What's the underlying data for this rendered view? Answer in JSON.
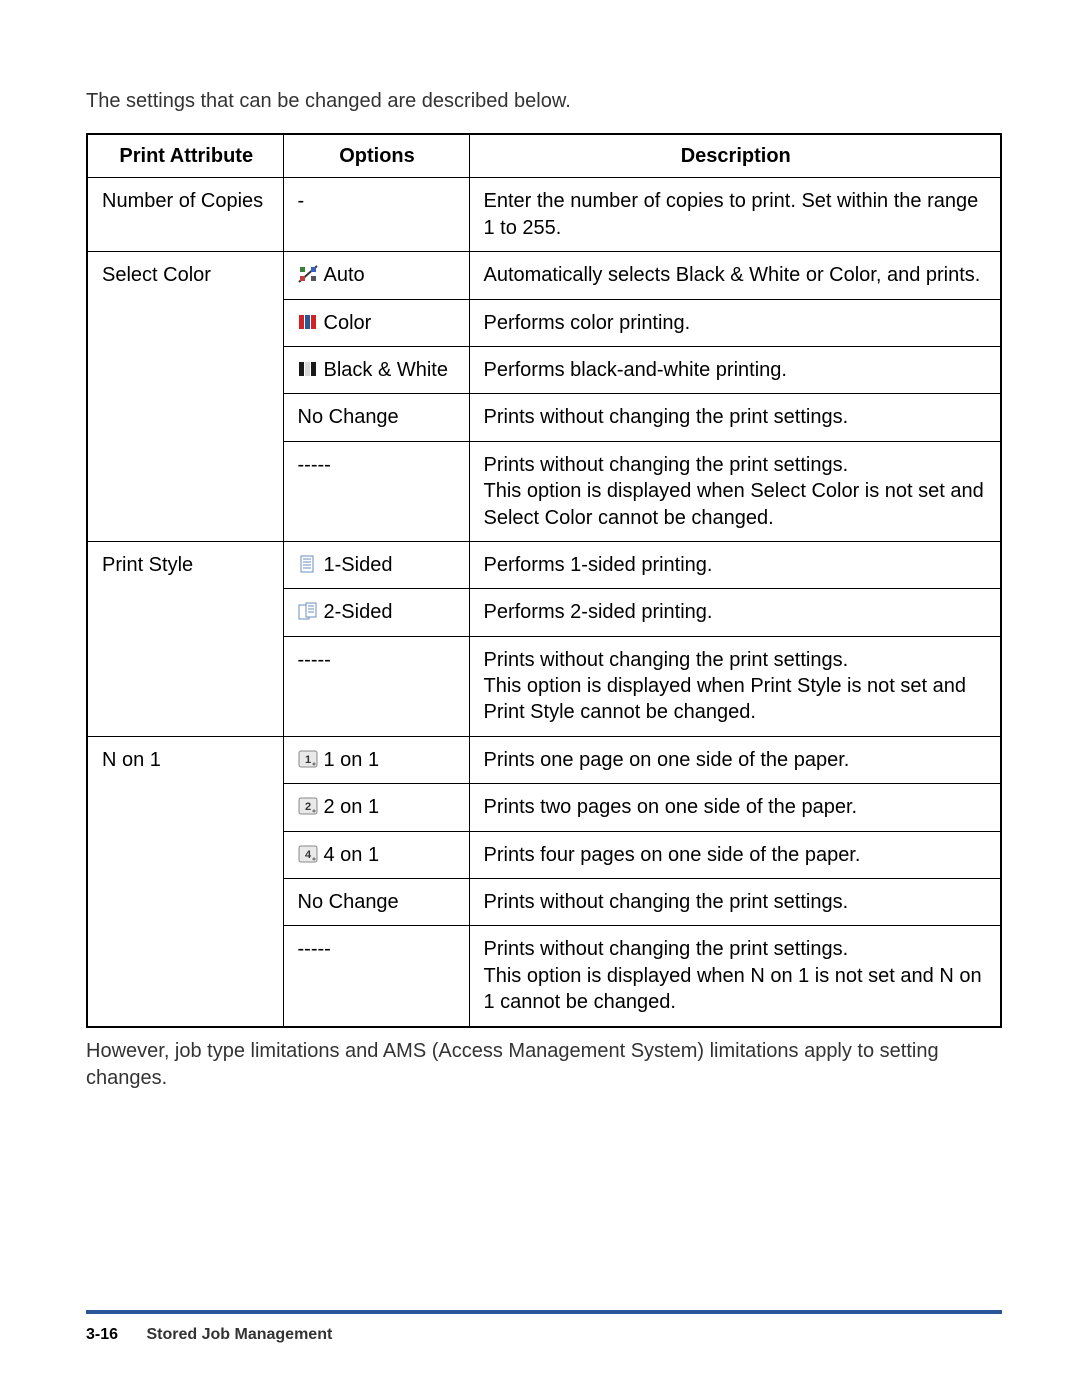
{
  "intro_text": "The settings that can be changed are described below.",
  "table": {
    "headers": {
      "attribute": "Print Attribute",
      "options": "Options",
      "description": "Description"
    },
    "groups": [
      {
        "attribute": "Number of Copies",
        "rows": [
          {
            "option": "-",
            "icon": null,
            "description": "Enter the number of copies to print. Set within the range 1 to 255."
          }
        ]
      },
      {
        "attribute": "Select Color",
        "rows": [
          {
            "option": "Auto",
            "icon": "auto-color",
            "description": "Automatically selects Black & White or Color, and prints."
          },
          {
            "option": "Color",
            "icon": "color-bars",
            "description": "Performs color printing."
          },
          {
            "option": "Black & White",
            "icon": "bw-bars",
            "description": "Performs black-and-white printing."
          },
          {
            "option": "No Change",
            "icon": null,
            "description": "Prints without changing the print settings."
          },
          {
            "option": "-----",
            "icon": null,
            "description": "Prints without changing the print settings.\nThis option is displayed when Select Color is not set and Select Color cannot be changed."
          }
        ]
      },
      {
        "attribute": "Print Style",
        "rows": [
          {
            "option": "1-Sided",
            "icon": "one-sided",
            "description": "Performs 1-sided printing."
          },
          {
            "option": "2-Sided",
            "icon": "two-sided",
            "description": "Performs 2-sided printing."
          },
          {
            "option": "-----",
            "icon": null,
            "description": "Prints without changing the print settings.\nThis option is displayed when Print Style is not set and Print Style cannot be changed."
          }
        ]
      },
      {
        "attribute": "N on 1",
        "rows": [
          {
            "option": "1 on 1",
            "icon": "n1",
            "description": "Prints one page on one side of the paper."
          },
          {
            "option": "2 on 1",
            "icon": "n2",
            "description": "Prints two pages on one side of the paper."
          },
          {
            "option": "4 on 1",
            "icon": "n4",
            "description": "Prints four pages on one side of the paper."
          },
          {
            "option": "No Change",
            "icon": null,
            "description": "Prints without changing the print settings."
          },
          {
            "option": "-----",
            "icon": null,
            "description": "Prints without changing the print settings.\nThis option is displayed when N on 1 is not set and N on 1 cannot be changed."
          }
        ]
      }
    ]
  },
  "footnote": "However, job type limitations and AMS (Access Management System) limitations apply to setting changes.",
  "footer": {
    "page_number": "3-16",
    "section_title": "Stored Job Management",
    "rule_color": "#2a5699"
  },
  "icons": {
    "auto-color": {
      "type": "auto",
      "colors": [
        "#3a7f3a",
        "#3a5fbf",
        "#c04040",
        "#555555"
      ]
    },
    "color-bars": {
      "type": "bars",
      "colors": [
        "#d02424",
        "#2a5699",
        "#d02424"
      ]
    },
    "bw-bars": {
      "type": "bars",
      "colors": [
        "#1a1a1a",
        "#d9d9d9",
        "#1a1a1a"
      ]
    },
    "one-sided": {
      "type": "sheet",
      "pages": 1,
      "line_color": "#6b8fbf",
      "fill": "#ffffff"
    },
    "two-sided": {
      "type": "sheet",
      "pages": 2,
      "line_color": "#6b8fbf",
      "fill": "#ffffff"
    },
    "n1": {
      "type": "grid",
      "n": 1,
      "badge_bg": "#e9e9e9",
      "outline": "#888888",
      "text": "1"
    },
    "n2": {
      "type": "grid",
      "n": 2,
      "badge_bg": "#e9e9e9",
      "outline": "#888888",
      "text": "2"
    },
    "n4": {
      "type": "grid",
      "n": 4,
      "badge_bg": "#e9e9e9",
      "outline": "#888888",
      "text": "4"
    }
  }
}
